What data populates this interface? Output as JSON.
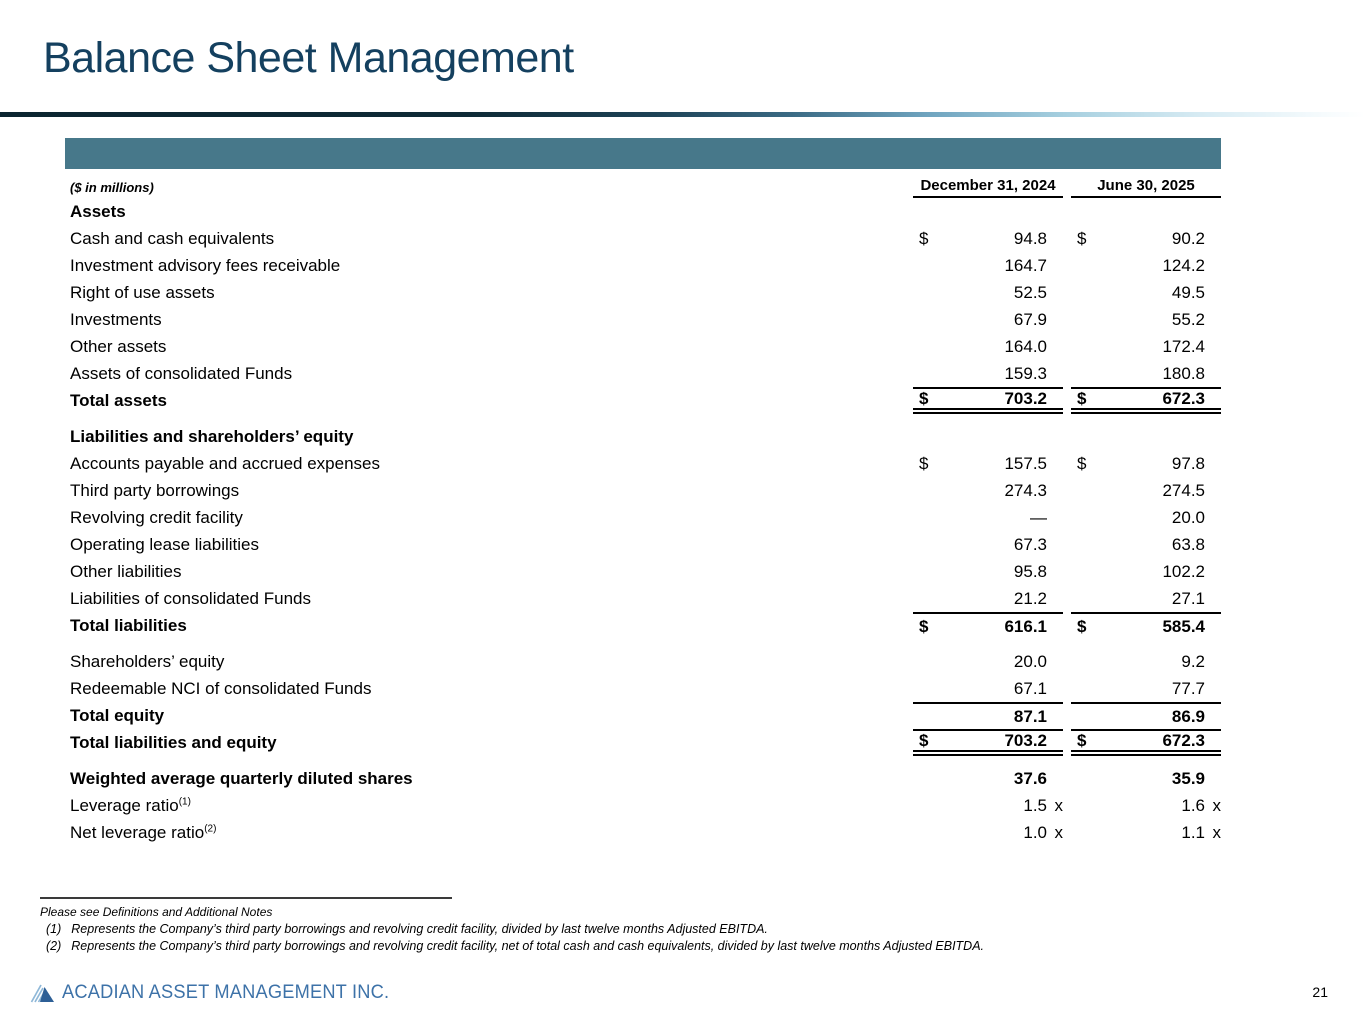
{
  "title": "Balance Sheet Management",
  "table": {
    "units_label": "($ in millions)",
    "col1": "December 31, 2024",
    "col2": "June 30, 2025",
    "rows": [
      {
        "label": "Assets",
        "style": "section"
      },
      {
        "label": "Cash and cash equivalents",
        "dollar": true,
        "v1": "94.8",
        "v2": "90.2"
      },
      {
        "label": "Investment advisory fees receivable",
        "v1": "164.7",
        "v2": "124.2"
      },
      {
        "label": "Right of use assets",
        "v1": "52.5",
        "v2": "49.5"
      },
      {
        "label": "Investments",
        "v1": "67.9",
        "v2": "55.2"
      },
      {
        "label": "Other assets",
        "v1": "164.0",
        "v2": "172.4"
      },
      {
        "label": "Assets of consolidated Funds",
        "v1": "159.3",
        "v2": "180.8"
      },
      {
        "label": "Total assets",
        "style": "total",
        "dollar": true,
        "v1": "703.2",
        "v2": "672.3",
        "rule_above": true,
        "double_below": true
      },
      {
        "label": "Liabilities and shareholders’ equity",
        "style": "section",
        "gap": true
      },
      {
        "label": "Accounts payable and accrued expenses",
        "dollar": true,
        "v1": "157.5",
        "v2": "97.8"
      },
      {
        "label": "Third party borrowings",
        "v1": "274.3",
        "v2": "274.5"
      },
      {
        "label": "Revolving credit facility",
        "v1": "—",
        "v2": "20.0"
      },
      {
        "label": "Operating lease liabilities",
        "v1": "67.3",
        "v2": "63.8"
      },
      {
        "label": "Other liabilities",
        "v1": "95.8",
        "v2": "102.2"
      },
      {
        "label": "Liabilities of consolidated Funds",
        "v1": "21.2",
        "v2": "27.1"
      },
      {
        "label": "Total liabilities",
        "style": "total",
        "dollar": true,
        "v1": "616.1",
        "v2": "585.4",
        "rule_above": true
      },
      {
        "label": "Shareholders’ equity",
        "gap": true,
        "v1": "20.0",
        "v2": "9.2"
      },
      {
        "label": "Redeemable NCI of consolidated Funds",
        "v1": "67.1",
        "v2": "77.7"
      },
      {
        "label": "Total equity",
        "style": "total",
        "v1": "87.1",
        "v2": "86.9",
        "rule_above": true
      },
      {
        "label": "Total liabilities and equity",
        "style": "total",
        "dollar": true,
        "v1": "703.2",
        "v2": "672.3",
        "rule_above": true,
        "double_below": true
      },
      {
        "label": "Weighted average quarterly diluted shares",
        "style": "bold",
        "bold_values": true,
        "gap": true,
        "v1": "37.6",
        "v2": "35.9"
      },
      {
        "label": "Leverage ratio",
        "sup": "(1)",
        "v1": "1.5",
        "s1": "x",
        "v2": "1.6",
        "s2": "x"
      },
      {
        "label": "Net leverage ratio",
        "sup": "(2)",
        "v1": "1.0",
        "s1": "x",
        "v2": "1.1",
        "s2": "x"
      }
    ]
  },
  "footnotes": {
    "intro": "Please see Definitions and Additional Notes",
    "items": [
      {
        "num": "(1)",
        "text": "Represents the Company’s third party borrowings and revolving credit facility, divided by last twelve months Adjusted EBITDA."
      },
      {
        "num": "(2)",
        "text": "Represents the Company’s third party borrowings and revolving credit facility, net of total cash and cash equivalents, divided by last twelve months Adjusted EBITDA."
      }
    ]
  },
  "footer": {
    "company": "ACADIAN ASSET MANAGEMENT INC.",
    "page_number": "21"
  },
  "colors": {
    "accent_teal": "#47788a",
    "title_navy": "#14405f",
    "logo_blue": "#3d72a8",
    "logo_stripe_blue": "#8fb8d8"
  }
}
